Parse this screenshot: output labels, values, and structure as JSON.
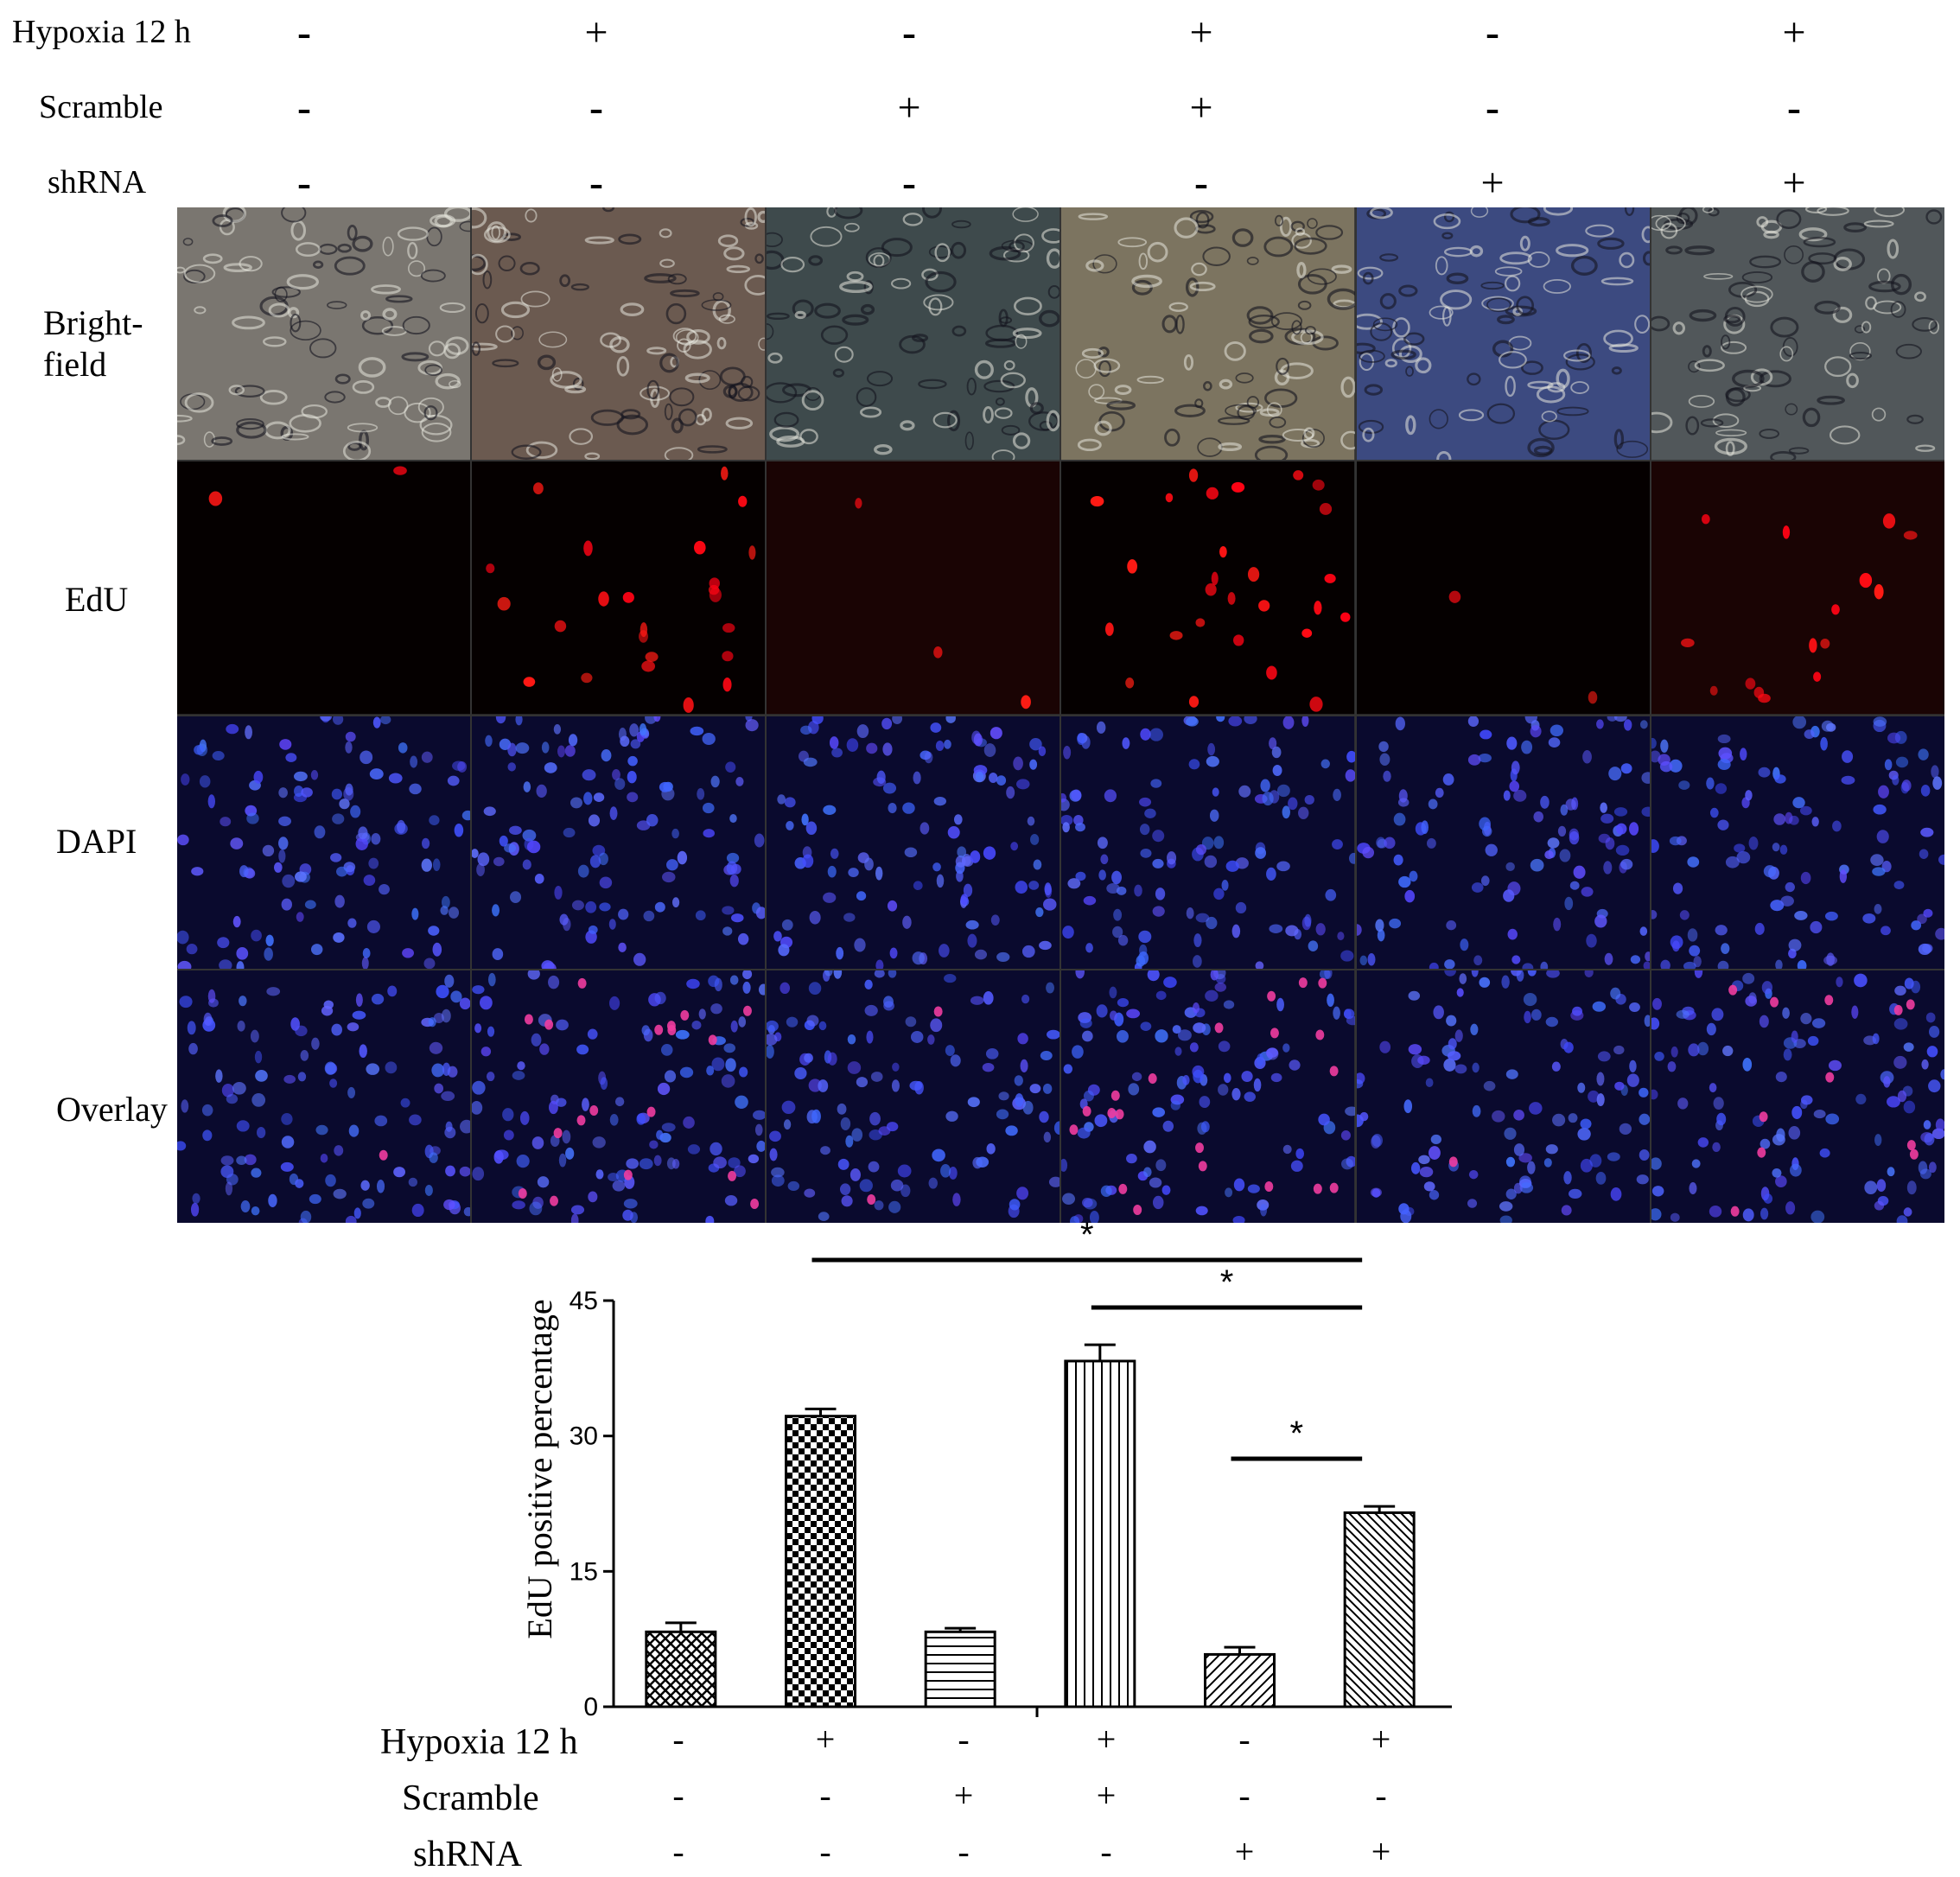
{
  "top_table": {
    "rows": [
      {
        "label": "Hypoxia 12 h",
        "signs": [
          "-",
          "+",
          "-",
          "+",
          "-",
          "+"
        ]
      },
      {
        "label": "Scramble",
        "signs": [
          "-",
          "-",
          "+",
          "+",
          "-",
          "-"
        ]
      },
      {
        "label": "shRNA",
        "signs": [
          "-",
          "-",
          "-",
          "-",
          "+",
          "+"
        ]
      }
    ]
  },
  "image_rows": [
    {
      "label": "Bright-\nfield",
      "channel": "brightfield"
    },
    {
      "label": "EdU",
      "channel": "edu"
    },
    {
      "label": "DAPI",
      "channel": "dapi"
    },
    {
      "label": "Overlay",
      "channel": "overlay"
    }
  ],
  "brightfield_tints": [
    "#7a7670",
    "#6b5a50",
    "#3e4a4c",
    "#7c7460",
    "#3c4a80",
    "#51575a"
  ],
  "edu_density": [
    0.05,
    0.8,
    0.1,
    0.9,
    0.05,
    0.5
  ],
  "chart_data": {
    "type": "bar",
    "categories": [
      "1",
      "2",
      "3",
      "4",
      "5",
      "6"
    ],
    "values": [
      8.3,
      32.2,
      8.3,
      38.3,
      5.8,
      21.5
    ],
    "errors": [
      1.0,
      0.8,
      0.4,
      1.8,
      0.8,
      0.7
    ],
    "patterns": [
      "crosshatch",
      "checker",
      "horizontal",
      "vertical",
      "diag-right",
      "diag-left"
    ],
    "ylabel": "EdU positive percentage",
    "ylim": [
      0,
      45
    ],
    "yticks": [
      "0",
      "15",
      "30",
      "45"
    ],
    "significance": [
      {
        "from": 1,
        "to": 5,
        "label": "*"
      },
      {
        "from": 3,
        "to": 5,
        "label": "*"
      },
      {
        "from": 4,
        "to": 5,
        "label": "*"
      }
    ]
  },
  "bottom_table": {
    "rows": [
      {
        "label": "Hypoxia 12 h",
        "signs": [
          "-",
          "+",
          "-",
          "+",
          "-",
          "+"
        ]
      },
      {
        "label": "Scramble",
        "signs": [
          "-",
          "-",
          "+",
          "+",
          "-",
          "-"
        ]
      },
      {
        "label": "shRNA",
        "signs": [
          "-",
          "-",
          "-",
          "-",
          "+",
          "+"
        ]
      }
    ]
  }
}
